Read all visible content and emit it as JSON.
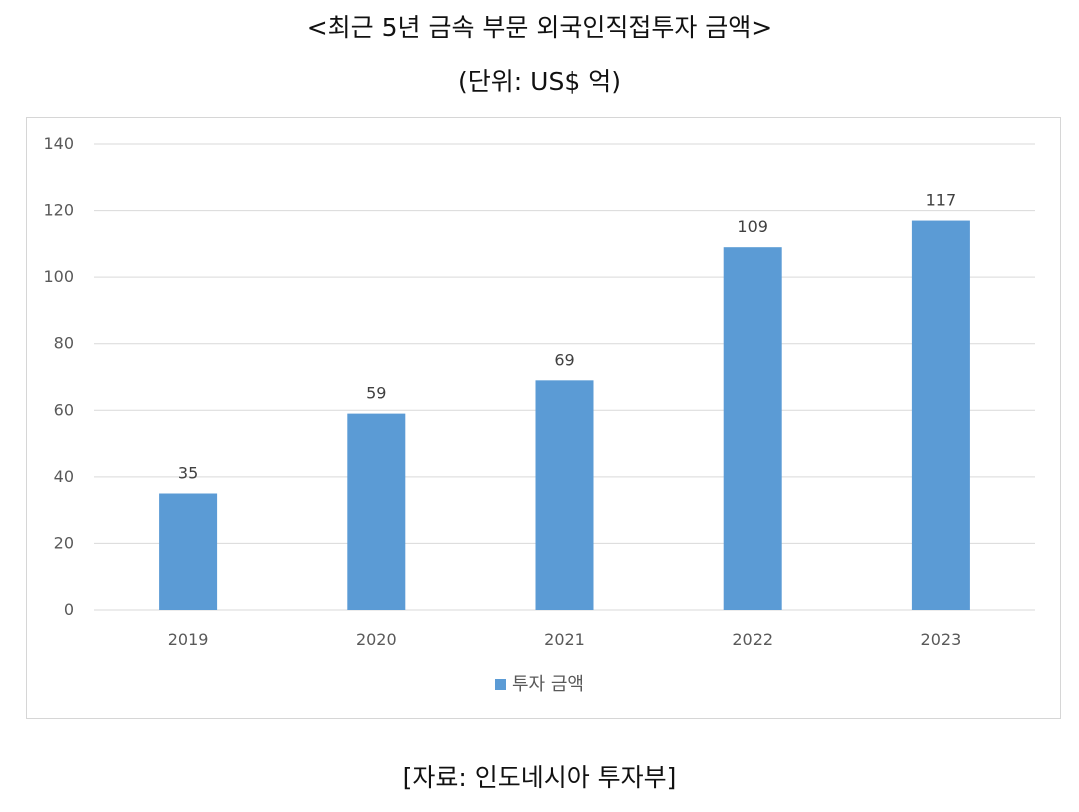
{
  "title": "<최근 5년 금속 부문 외국인직접투자 금액>",
  "unit": "(단위: US$ 억)",
  "source": "[자료: 인도네시아 투자부]",
  "colors": {
    "bar": "#5b9bd5",
    "grid": "#d9d9d9",
    "tick_text": "#595959",
    "label_text": "#404040"
  },
  "chart_data": {
    "type": "bar",
    "categories": [
      "2019",
      "2020",
      "2021",
      "2022",
      "2023"
    ],
    "series": [
      {
        "name": "투자 금액",
        "values": [
          35,
          59,
          69,
          109,
          117
        ]
      }
    ],
    "ylim": [
      0,
      140
    ],
    "yticks": [
      0,
      20,
      40,
      60,
      80,
      100,
      120,
      140
    ],
    "grid": true,
    "data_labels": true,
    "legend": "bottom"
  }
}
